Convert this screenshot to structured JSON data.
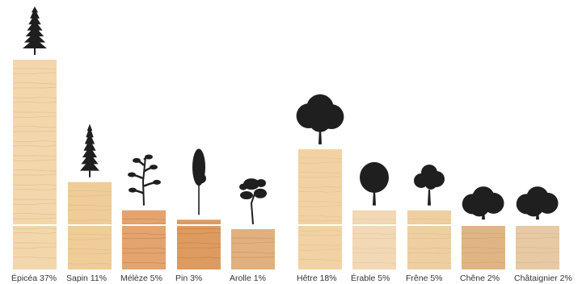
{
  "chart_data": {
    "type": "bar",
    "categories": [
      {
        "label": "Épicéa 37%",
        "name": "Épicéa",
        "value": 37,
        "group": "conifer",
        "tree": "spruce"
      },
      {
        "label": "Sapin 11%",
        "name": "Sapin",
        "value": 11,
        "group": "conifer",
        "tree": "fir"
      },
      {
        "label": "Mélèze 5%",
        "name": "Mélèze",
        "value": 5,
        "group": "conifer",
        "tree": "larch"
      },
      {
        "label": "Pin 3%",
        "name": "Pin",
        "value": 3,
        "group": "conifer",
        "tree": "pine"
      },
      {
        "label": "Arolle 1%",
        "name": "Arolle",
        "value": 1,
        "group": "conifer",
        "tree": "stone-pine"
      },
      {
        "label": "Hêtre 18%",
        "name": "Hêtre",
        "value": 18,
        "group": "broadleaf",
        "tree": "broadleaf-tall"
      },
      {
        "label": "Érable 5%",
        "name": "Érable",
        "value": 5,
        "group": "broadleaf",
        "tree": "broadleaf-oval"
      },
      {
        "label": "Frêne 5%",
        "name": "Frêne",
        "value": 5,
        "group": "broadleaf",
        "tree": "broadleaf-lobed"
      },
      {
        "label": "Chêne 2%",
        "name": "Chêne",
        "value": 2,
        "group": "broadleaf",
        "tree": "broadleaf-wide"
      },
      {
        "label": "Châtaignier 2%",
        "name": "Châtaignier",
        "value": 2,
        "group": "broadleaf",
        "tree": "broadleaf-wide"
      }
    ],
    "unit": "%",
    "ylim": [
      0,
      37
    ],
    "grid": false,
    "legend": "none"
  },
  "colors": {
    "wood": [
      "#f3d7ac",
      "#efcc98",
      "#e3a46f",
      "#dd9b60",
      "#e2b07e",
      "#f2d2a4",
      "#f2d8b4",
      "#efcfa2",
      "#e0b583",
      "#e7c9a3"
    ],
    "wood_grain": [
      "#d8b27c",
      "#d6b07d",
      "#b96c3c",
      "#b8733f",
      "#c48955",
      "#ddb681",
      "#dcc09a",
      "#d5b080",
      "#c89663",
      "#cfae86"
    ],
    "tree": "#1f1f1f",
    "label": "#333333",
    "stripe": "#ffffff"
  }
}
